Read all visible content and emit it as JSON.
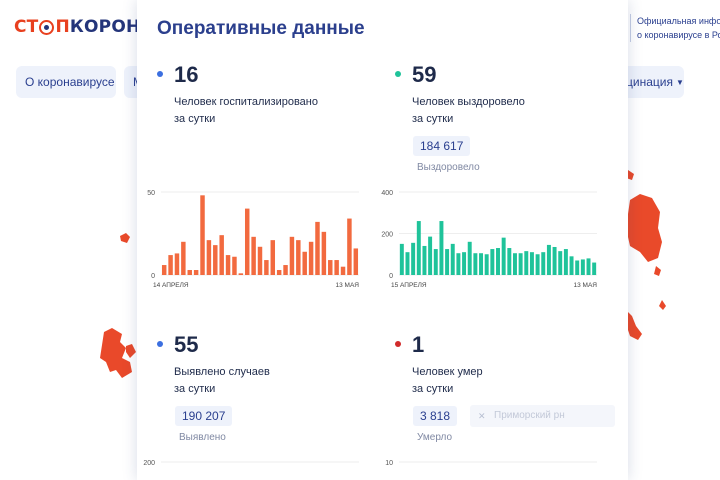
{
  "site": {
    "logo_part1": "СТ",
    "logo_part2": "П",
    "logo_part3": "КОРОНАВИ",
    "official_line1": "Официальная информ",
    "official_line2": "о коронавирусе в Росс"
  },
  "nav": {
    "item1": "О коронавирусе",
    "item2": "М",
    "item3": "цинация"
  },
  "panel": {
    "title": "Оперативные данные",
    "hospitalized": {
      "value": "16",
      "label_line1": "Человек госпитализировано",
      "label_line2": "за сутки",
      "color": "#3b6fe0"
    },
    "recovered": {
      "value": "59",
      "label_line1": "Человек выздоровело",
      "label_line2": "за сутки",
      "total": "184 617",
      "total_caption": "Выздоровело",
      "color": "#1fc39a"
    },
    "cases": {
      "value": "55",
      "label_line1": "Выявлено случаев",
      "label_line2": "за сутки",
      "total": "190 207",
      "total_caption": "Выявлено",
      "color": "#3b6fe0"
    },
    "deaths": {
      "value": "1",
      "label_line1": "Человек умер",
      "label_line2": "за сутки",
      "total": "3 818",
      "total_caption": "Умерло",
      "color": "#d12b2b",
      "filter_placeholder": "Приморский рн"
    }
  },
  "chart_data": [
    {
      "type": "bar",
      "title": "",
      "color": "#f26a3f",
      "x_start_label": "14 АПРЕЛЯ",
      "x_end_label": "13 МАЯ",
      "ylim": [
        0,
        50
      ],
      "y_ticks": [
        "0",
        "50"
      ],
      "values": [
        6,
        12,
        13,
        20,
        3,
        3,
        48,
        21,
        18,
        24,
        12,
        11,
        1,
        40,
        23,
        17,
        9,
        21,
        3,
        6,
        23,
        21,
        14,
        20,
        32,
        26,
        9,
        9,
        5,
        34,
        16
      ]
    },
    {
      "type": "bar",
      "title": "",
      "color": "#1fc39a",
      "x_start_label": "15 АПРЕЛЯ",
      "x_end_label": "13 МАЯ",
      "ylim": [
        0,
        400
      ],
      "y_ticks": [
        "0",
        "200",
        "400"
      ],
      "values": [
        150,
        110,
        155,
        260,
        140,
        185,
        125,
        260,
        125,
        150,
        105,
        110,
        160,
        105,
        105,
        100,
        125,
        130,
        180,
        130,
        105,
        105,
        115,
        110,
        100,
        110,
        145,
        135,
        115,
        125,
        90,
        70,
        75,
        80,
        60
      ]
    },
    {
      "type": "bar",
      "title": "",
      "color": "#3b6fe0",
      "ylim": [
        0,
        200
      ],
      "y_ticks": [
        "200"
      ],
      "values": []
    },
    {
      "type": "bar",
      "title": "",
      "color": "#d12b2b",
      "ylim": [
        0,
        10
      ],
      "y_ticks": [
        "10"
      ],
      "values": []
    }
  ]
}
